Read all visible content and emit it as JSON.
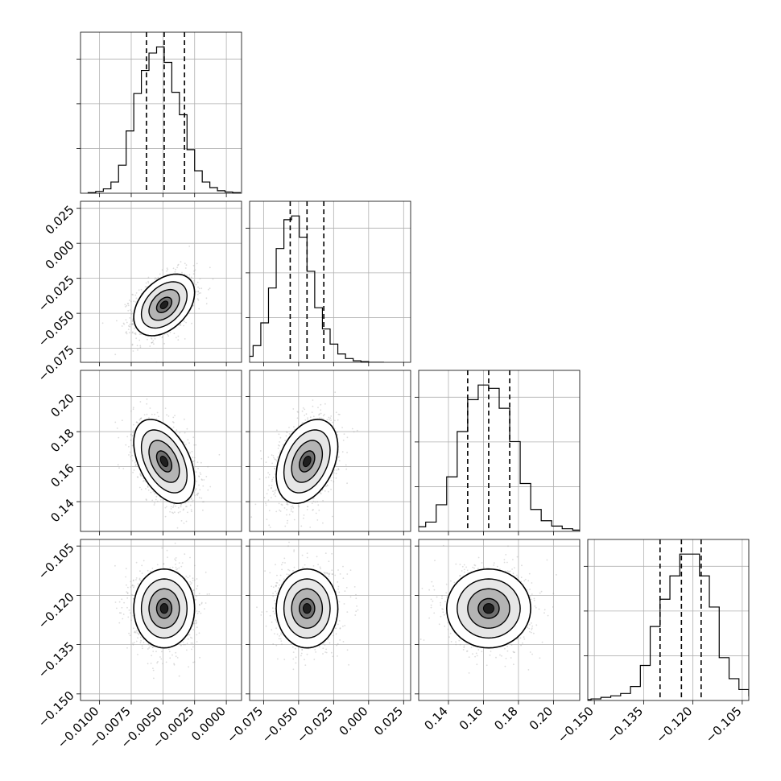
{
  "chart_data": {
    "type": "corner",
    "title": "",
    "n_params": 4,
    "grid": true,
    "params": [
      {
        "name": "",
        "range": [
          -0.0115,
          0.0012
        ],
        "ticks": [
          -0.01,
          -0.0075,
          -0.005,
          -0.0025,
          0.0
        ],
        "tick_labels": [
          "−0.0100",
          "−0.0075",
          "−0.0050",
          "−0.0025",
          "0.0000"
        ],
        "quantiles": [
          -0.0063,
          -0.0049,
          -0.0033
        ],
        "center": -0.0049,
        "sd": 0.0012,
        "hist_counts": [
          1,
          3,
          7,
          18,
          45,
          100,
          160,
          197,
          225,
          235,
          210,
          162,
          126,
          70,
          36,
          18,
          9,
          4,
          2,
          1
        ]
      },
      {
        "name": "",
        "range": [
          -0.085,
          0.03
        ],
        "ticks": [
          -0.075,
          -0.05,
          -0.025,
          0.0,
          0.025
        ],
        "tick_labels": [
          "−0.075",
          "−0.050",
          "−0.025",
          "0.000",
          "0.025"
        ],
        "quantiles": [
          -0.056,
          -0.044,
          -0.032
        ],
        "center": -0.044,
        "sd": 0.011,
        "hist_counts": [
          2,
          4,
          8,
          22,
          52,
          98,
          150,
          188,
          193,
          165,
          120,
          72,
          44,
          24,
          11,
          5,
          2,
          1,
          0,
          0
        ]
      },
      {
        "name": "",
        "range": [
          0.123,
          0.215
        ],
        "ticks": [
          0.14,
          0.16,
          0.18,
          0.2
        ],
        "tick_labels": [
          "0.14",
          "0.16",
          "0.18",
          "0.20"
        ],
        "quantiles": [
          0.151,
          0.163,
          0.175
        ],
        "center": 0.163,
        "sd": 0.012,
        "hist_counts": [
          1,
          2,
          4,
          7,
          14,
          40,
          82,
          150,
          198,
          220,
          215,
          185,
          135,
          72,
          33,
          16,
          8,
          4,
          2,
          1
        ]
      },
      {
        "name": "",
        "range": [
          -0.152,
          -0.103
        ],
        "ticks": [
          -0.15,
          -0.135,
          -0.12,
          -0.105
        ],
        "tick_labels": [
          "−0.150",
          "−0.135",
          "−0.120",
          "−0.105"
        ],
        "quantiles": [
          -0.13,
          -0.1235,
          -0.1175
        ],
        "center": -0.124,
        "sd": 0.006,
        "hist_counts": [
          1,
          2,
          4,
          6,
          9,
          18,
          45,
          95,
          130,
          160,
          188,
          188,
          160,
          120,
          55,
          28,
          14,
          6,
          2,
          1
        ]
      }
    ],
    "correlations": [
      {
        "pair": [
          1,
          0
        ],
        "rho": 0.4
      },
      {
        "pair": [
          2,
          0
        ],
        "rho": -0.45
      },
      {
        "pair": [
          2,
          1
        ],
        "rho": 0.35
      },
      {
        "pair": [
          3,
          0
        ],
        "rho": 0.0
      },
      {
        "pair": [
          3,
          1
        ],
        "rho": 0.0
      },
      {
        "pair": [
          3,
          2
        ],
        "rho": 0.0
      }
    ],
    "contour_levels_sigma": [
      0.5,
      1.0,
      1.5,
      2.0
    ]
  }
}
